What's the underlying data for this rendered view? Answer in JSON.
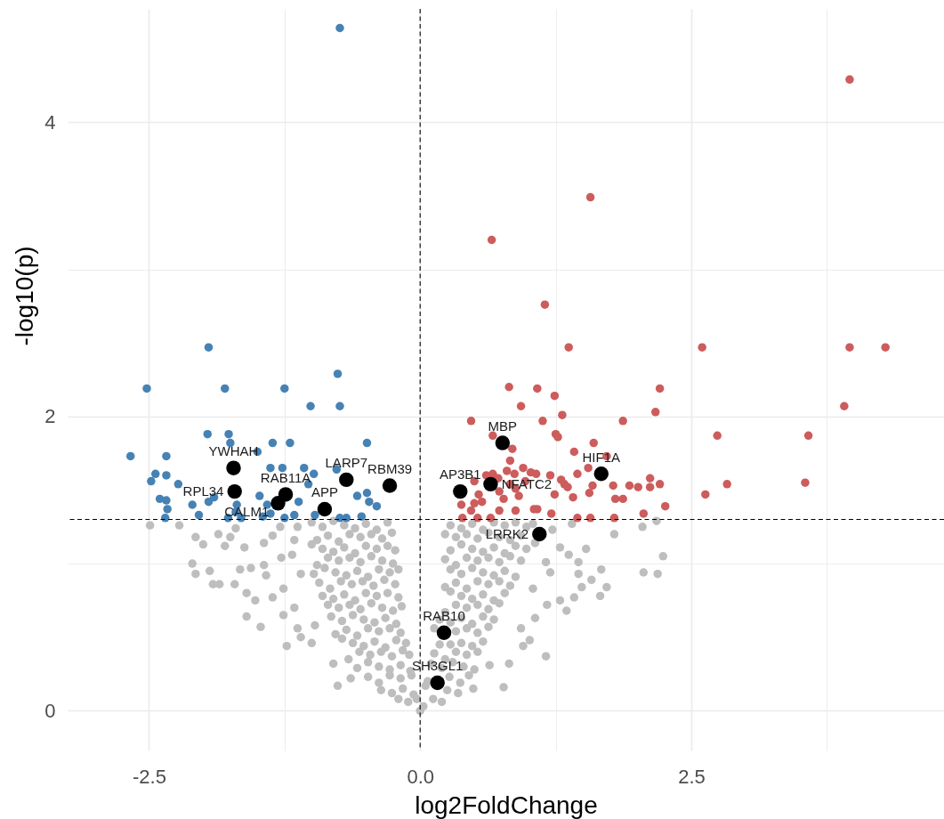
{
  "chart_data": {
    "type": "scatter",
    "xlabel": "log2FoldChange",
    "ylabel": "-log10(p)",
    "xlim": [
      -3.25,
      4.83
    ],
    "ylim": [
      -0.27,
      4.77
    ],
    "xticks": [
      -2.5,
      {
        "value": -1.25,
        "label": null
      },
      {
        "value": 0,
        "label": "0.0"
      },
      {
        "value": 1.25,
        "label": null
      },
      2.5,
      {
        "value": 3.75,
        "label": null
      }
    ],
    "yticks": [
      0,
      {
        "value": 1,
        "label": null
      },
      2,
      {
        "value": 3,
        "label": null
      },
      4
    ],
    "grid": true,
    "marker": "circle",
    "ref_lines": [
      {
        "axis": "x",
        "value": 0,
        "color": "#000000",
        "line_style": "dashed"
      },
      {
        "axis": "y",
        "value": 1.3,
        "color": "#000000",
        "line_style": "dashed"
      }
    ],
    "series": [
      {
        "color": "#bebebe",
        "x": [
          -1.0,
          -0.9,
          -0.8,
          -0.7,
          -0.6,
          -0.5,
          -0.4,
          -0.3,
          -0.95,
          -0.85,
          -0.75,
          -0.65,
          -0.55,
          -0.45,
          -0.35,
          -0.26,
          -1.0,
          -0.9,
          -0.8,
          -0.7,
          -0.6,
          -0.5,
          -0.4,
          -0.3,
          -0.23,
          -0.95,
          -0.85,
          -0.75,
          -0.65,
          -0.55,
          -0.45,
          -0.35,
          -0.25,
          -0.98,
          -0.88,
          -0.78,
          -0.68,
          -0.58,
          -0.48,
          -0.38,
          -0.28,
          -0.2,
          -0.93,
          -0.83,
          -0.73,
          -0.63,
          -0.53,
          -0.43,
          -0.33,
          -0.23,
          -0.9,
          -0.8,
          -0.7,
          -0.6,
          -0.5,
          -0.4,
          -0.3,
          -0.2,
          -0.85,
          -0.75,
          -0.65,
          -0.55,
          -0.45,
          -0.35,
          -0.25,
          -0.17,
          -0.82,
          -0.72,
          -0.62,
          -0.52,
          -0.42,
          -0.32,
          -0.22,
          -0.78,
          -0.68,
          -0.58,
          -0.48,
          -0.38,
          -0.28,
          -0.18,
          -0.72,
          -0.62,
          -0.52,
          -0.42,
          -0.32,
          -0.22,
          -0.13,
          -0.66,
          -0.56,
          -0.46,
          -0.36,
          -0.26,
          -0.16,
          -0.1,
          -0.58,
          -0.48,
          -0.38,
          -0.28,
          -0.18,
          -0.09,
          -0.48,
          -0.38,
          -0.28,
          -0.18,
          -0.08,
          -0.36,
          -0.26,
          -0.16,
          -0.06,
          -0.2,
          -0.11,
          -0.03,
          0.28,
          0.38,
          0.48,
          0.58,
          0.68,
          0.78,
          0.88,
          0.98,
          0.23,
          0.33,
          0.43,
          0.53,
          0.63,
          0.73,
          0.83,
          0.93,
          0.28,
          0.38,
          0.48,
          0.58,
          0.68,
          0.78,
          0.88,
          0.98,
          0.23,
          0.33,
          0.43,
          0.53,
          0.63,
          0.73,
          0.83,
          0.93,
          0.28,
          0.38,
          0.48,
          0.58,
          0.68,
          0.78,
          0.88,
          0.23,
          0.33,
          0.43,
          0.53,
          0.63,
          0.73,
          0.83,
          0.28,
          0.38,
          0.48,
          0.58,
          0.68,
          0.78,
          0.23,
          0.33,
          0.43,
          0.53,
          0.63,
          0.73,
          0.18,
          0.28,
          0.38,
          0.48,
          0.58,
          0.68,
          0.13,
          0.33,
          0.43,
          0.53,
          0.63,
          0.18,
          0.28,
          0.38,
          0.48,
          0.58,
          0.13,
          0.23,
          0.33,
          0.43,
          0.53,
          0.1,
          0.2,
          0.3,
          0.4,
          0.5,
          0.07,
          0.27,
          0.37,
          0.45,
          0.05,
          0.25,
          0.35,
          0.03,
          0.12,
          0.2,
          -2.49,
          -2.22,
          -2.07,
          -2.0,
          -1.86,
          -1.75,
          -1.7,
          -1.8,
          -2.1,
          -2.07,
          -1.94,
          -1.91,
          -1.85,
          -1.71,
          -1.62,
          -1.66,
          -1.6,
          -1.52,
          -1.6,
          -1.47,
          -1.56,
          -1.44,
          -1.42,
          -1.36,
          -1.44,
          -1.29,
          -1.36,
          -1.26,
          -1.26,
          -1.23,
          -1.16,
          -1.13,
          -1.1,
          -0.97,
          -0.76,
          -0.64,
          -0.8,
          -1.28,
          -1.18,
          -1.16,
          -1.13,
          -1.1,
          -1.0,
          1.4,
          1.29,
          1.37,
          1.53,
          1.46,
          1.46,
          1.67,
          1.58,
          1.49,
          1.72,
          1.66,
          1.79,
          2.06,
          2.19,
          2.24,
          2.05,
          2.18,
          1.42,
          1.29,
          1.35,
          1.17,
          1.06,
          0.93,
          1.01,
          0.95,
          1.16,
          0.82,
          0.77,
          0.64,
          0.49,
          1.04,
          1.2,
          1.16,
          1.06,
          1.22,
          1.04,
          0
        ],
        "values": [
          1.28,
          1.25,
          1.29,
          1.26,
          1.24,
          1.27,
          1.23,
          1.28,
          1.16,
          1.19,
          1.15,
          1.2,
          1.18,
          1.2,
          1.17,
          1.21,
          1.13,
          1.1,
          1.08,
          1.11,
          1.07,
          1.12,
          1.1,
          1.12,
          1.09,
          0.99,
          1.04,
          1.02,
          1.04,
          1.01,
          1.05,
          1.02,
          1.0,
          0.93,
          0.97,
          0.94,
          0.92,
          0.95,
          0.91,
          0.96,
          0.94,
          0.96,
          0.87,
          0.83,
          0.88,
          0.86,
          0.88,
          0.85,
          0.89,
          0.86,
          0.78,
          0.76,
          0.79,
          0.75,
          0.8,
          0.78,
          0.8,
          0.77,
          0.72,
          0.7,
          0.72,
          0.69,
          0.73,
          0.7,
          0.68,
          0.71,
          0.64,
          0.61,
          0.65,
          0.62,
          0.6,
          0.63,
          0.59,
          0.52,
          0.55,
          0.51,
          0.56,
          0.54,
          0.56,
          0.53,
          0.49,
          0.46,
          0.44,
          0.47,
          0.43,
          0.48,
          0.46,
          0.35,
          0.4,
          0.38,
          0.4,
          0.37,
          0.41,
          0.38,
          0.29,
          0.33,
          0.3,
          0.28,
          0.31,
          0.27,
          0.23,
          0.19,
          0.24,
          0.22,
          0.24,
          0.14,
          0.12,
          0.15,
          0.11,
          0.08,
          0.06,
          0.08,
          1.26,
          1.24,
          1.27,
          1.23,
          1.28,
          1.26,
          1.28,
          1.25,
          1.2,
          1.18,
          1.2,
          1.17,
          1.21,
          1.18,
          1.16,
          1.19,
          1.09,
          1.13,
          1.1,
          1.08,
          1.11,
          1.07,
          1.12,
          1.1,
          1.03,
          0.99,
          1.04,
          1.02,
          1.04,
          1.01,
          1.05,
          1.02,
          0.96,
          0.93,
          0.97,
          0.94,
          0.92,
          0.95,
          0.91,
          0.84,
          0.87,
          0.83,
          0.88,
          0.86,
          0.88,
          0.85,
          0.81,
          0.78,
          0.76,
          0.79,
          0.75,
          0.8,
          0.67,
          0.72,
          0.7,
          0.72,
          0.69,
          0.73,
          0.62,
          0.6,
          0.63,
          0.59,
          0.64,
          0.62,
          0.56,
          0.54,
          0.56,
          0.53,
          0.57,
          0.45,
          0.45,
          0.46,
          0.44,
          0.47,
          0.39,
          0.35,
          0.4,
          0.38,
          0.4,
          0.32,
          0.29,
          0.33,
          0.3,
          0.28,
          0.2,
          0.23,
          0.19,
          0.24,
          0.17,
          0.14,
          0.12,
          0.03,
          0.08,
          0.06,
          1.26,
          1.26,
          1.18,
          1.13,
          1.2,
          1.18,
          1.24,
          1.12,
          1.0,
          0.93,
          0.95,
          0.86,
          0.86,
          0.86,
          1.11,
          0.96,
          0.8,
          0.75,
          0.64,
          0.57,
          0.97,
          0.99,
          0.92,
          1.19,
          1.14,
          1.25,
          0.77,
          0.83,
          0.65,
          0.44,
          0.7,
          0.56,
          0.5,
          0.58,
          0.17,
          0.22,
          0.32,
          1.04,
          1.06,
          1.16,
          1.25,
          0.93,
          0.46,
          1.27,
          1.11,
          1.06,
          1.1,
          1.01,
          0.93,
          0.96,
          0.89,
          0.84,
          0.84,
          0.78,
          1.2,
          0.94,
          0.93,
          1.05,
          1.25,
          1.29,
          0.77,
          0.75,
          0.68,
          0.72,
          0.63,
          0.56,
          0.48,
          0.44,
          0.37,
          0.32,
          0.16,
          0.31,
          0.15,
          0.83,
          0.94,
          1.01,
          1.14,
          1.23,
          1.27,
          0
        ]
      },
      {
        "color": "#4682b4",
        "x": [
          -0.74,
          -1.95,
          -0.76,
          -2.52,
          -1.8,
          -1.25,
          -1.01,
          -0.74,
          -1.96,
          -1.765,
          -1.75,
          -1.36,
          -1.2,
          -0.49,
          -2.67,
          -2.34,
          -1.5,
          -1.38,
          -1.27,
          -1.07,
          -0.98,
          -2.44,
          -2.48,
          -2.34,
          -2.23,
          -1.03,
          -0.77,
          -2.4,
          -2.34,
          -2.33,
          -2.1,
          -2.04,
          -2.35,
          -1.95,
          -1.9,
          -1.69,
          -1.7,
          -1.77,
          -1.65,
          -1.48,
          -1.41,
          -1.45,
          -1.38,
          -1.25,
          -1.16,
          -1.12,
          -0.97,
          -0.74,
          -0.68,
          -0.58,
          -0.49,
          -0.47,
          -0.4,
          -0.54
        ],
        "values": [
          4.64,
          2.47,
          2.29,
          2.19,
          2.19,
          2.19,
          2.07,
          2.07,
          1.88,
          1.88,
          1.82,
          1.82,
          1.82,
          1.82,
          1.73,
          1.73,
          1.76,
          1.65,
          1.65,
          1.65,
          1.61,
          1.61,
          1.56,
          1.6,
          1.54,
          1.54,
          1.64,
          1.44,
          1.43,
          1.37,
          1.4,
          1.33,
          1.31,
          1.42,
          1.45,
          1.4,
          1.35,
          1.31,
          1.31,
          1.46,
          1.4,
          1.32,
          1.34,
          1.31,
          1.33,
          1.42,
          1.33,
          1.31,
          1.31,
          1.46,
          1.48,
          1.42,
          1.39,
          1.32
        ]
      },
      {
        "color": "#cd5c5c",
        "x": [
          3.96,
          1.57,
          0.66,
          1.15,
          1.37,
          2.6,
          3.96,
          4.29,
          0.82,
          1.08,
          1.24,
          0.93,
          2.21,
          2.17,
          1.31,
          3.91,
          0.47,
          1.13,
          1.87,
          2.74,
          3.58,
          1.25,
          1.27,
          1.6,
          0.67,
          0.85,
          1.42,
          0.83,
          1.72,
          0.95,
          1.02,
          1.07,
          1.2,
          1.45,
          1.55,
          1.3,
          1.33,
          1.36,
          1.59,
          1.78,
          1.93,
          2.01,
          2.12,
          2.12,
          2.21,
          2.83,
          3.55,
          2.63,
          1.56,
          1.8,
          1.87,
          1.41,
          1.24,
          2.26,
          2.06,
          1.79,
          1.57,
          1.45,
          1.21,
          1.08,
          0.88,
          0.91,
          0.97,
          0.83,
          0.88,
          0.73,
          0.77,
          0.54,
          0.5,
          0.57,
          0.47,
          0.38,
          0.39,
          0.53,
          0.65,
          0.73,
          0.67,
          0.72,
          0.61,
          0.5,
          0.8,
          0.87,
          1.05
        ],
        "values": [
          4.29,
          3.49,
          3.2,
          2.76,
          2.47,
          2.47,
          2.47,
          2.47,
          2.2,
          2.19,
          2.14,
          2.07,
          2.19,
          2.03,
          2.01,
          2.07,
          1.97,
          1.97,
          1.97,
          1.87,
          1.87,
          1.88,
          1.86,
          1.82,
          1.87,
          1.78,
          1.76,
          1.7,
          1.73,
          1.65,
          1.62,
          1.61,
          1.6,
          1.61,
          1.65,
          1.57,
          1.54,
          1.52,
          1.53,
          1.53,
          1.53,
          1.52,
          1.58,
          1.52,
          1.54,
          1.54,
          1.55,
          1.47,
          1.48,
          1.44,
          1.44,
          1.45,
          1.47,
          1.39,
          1.34,
          1.31,
          1.31,
          1.31,
          1.34,
          1.37,
          1.36,
          1.46,
          1.56,
          1.54,
          1.51,
          1.49,
          1.44,
          1.47,
          1.41,
          1.42,
          1.36,
          1.4,
          1.31,
          1.31,
          1.31,
          1.36,
          1.61,
          1.58,
          1.6,
          1.56,
          1.63,
          1.61,
          1.37
        ]
      },
      {
        "color": "#000000",
        "x": [
          -1.72,
          -1.71,
          -1.31,
          -1.24,
          -0.88,
          -0.68,
          -0.28,
          0.37,
          0.65,
          0.76,
          1.67,
          1.1,
          0.22,
          0.16
        ],
        "values": [
          1.65,
          1.49,
          1.41,
          1.47,
          1.37,
          1.57,
          1.53,
          1.49,
          1.54,
          1.82,
          1.61,
          1.2,
          0.53,
          0.19
        ]
      }
    ],
    "annotations": [
      {
        "text": "YWHAH",
        "x": -1.72,
        "y": 1.65
      },
      {
        "text": "RPL34",
        "x": -1.71,
        "y": 1.49
      },
      {
        "text": "RAB11A",
        "x": -1.24,
        "y": 1.47
      },
      {
        "text": "CALM1",
        "x": -1.31,
        "y": 1.41
      },
      {
        "text": "APP",
        "x": -0.88,
        "y": 1.37
      },
      {
        "text": "LARP7",
        "x": -0.68,
        "y": 1.57
      },
      {
        "text": "RBM39",
        "x": -0.28,
        "y": 1.53
      },
      {
        "text": "AP3B1",
        "x": 0.37,
        "y": 1.49
      },
      {
        "text": "NFATC2",
        "x": 0.65,
        "y": 1.54
      },
      {
        "text": "MBP",
        "x": 0.76,
        "y": 1.82
      },
      {
        "text": "HIF1A",
        "x": 1.67,
        "y": 1.61
      },
      {
        "text": "LRRK2",
        "x": 1.1,
        "y": 1.2
      },
      {
        "text": "RAB10",
        "x": 0.22,
        "y": 0.53
      },
      {
        "text": "SH3GL1",
        "x": 0.16,
        "y": 0.19
      }
    ]
  }
}
